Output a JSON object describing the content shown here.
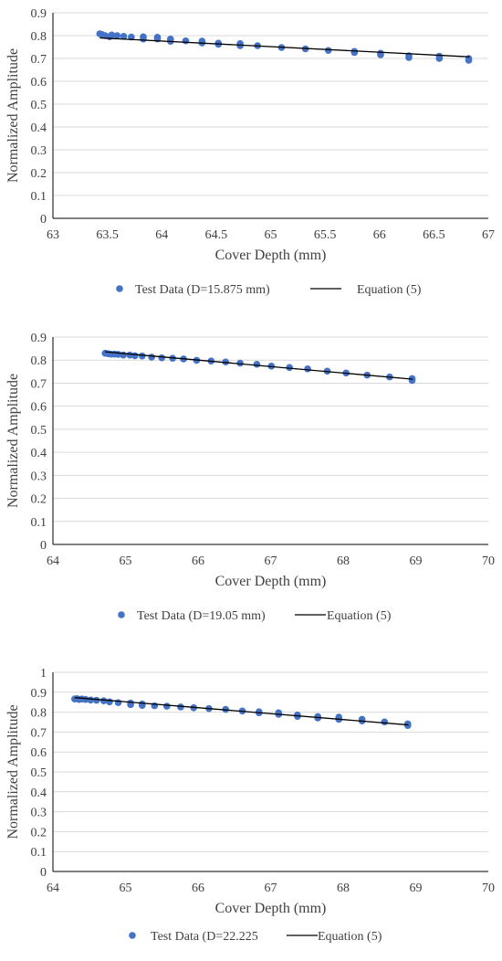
{
  "chart_data": [
    {
      "type": "scatter",
      "title": "",
      "xlabel": "Cover Depth (mm)",
      "ylabel": "Normalized Amplitude",
      "xlim": [
        63,
        67
      ],
      "ylim": [
        0,
        0.9
      ],
      "xticks": [
        "63",
        "63.5",
        "64",
        "64.5",
        "65",
        "65.5",
        "66",
        "66.5",
        "67"
      ],
      "yticks": [
        "0",
        "0.1",
        "0.2",
        "0.3",
        "0.4",
        "0.5",
        "0.6",
        "0.7",
        "0.8",
        "0.9"
      ],
      "grid": "horizontal",
      "legend": "bottom",
      "series": [
        {
          "name": "Test Data (D=15.875 mm)",
          "kind": "points",
          "color": "#4472c4",
          "x": [
            63.43,
            63.45,
            63.48,
            63.52,
            63.54,
            63.59,
            63.65,
            63.72,
            63.83,
            63.83,
            63.96,
            63.96,
            64.08,
            64.08,
            64.22,
            64.37,
            64.37,
            64.52,
            64.52,
            64.72,
            64.72,
            64.88,
            65.1,
            65.32,
            65.53,
            65.77,
            65.77,
            66.01,
            66.01,
            66.27,
            66.27,
            66.55,
            66.55,
            66.82,
            66.82
          ],
          "y": [
            0.808,
            0.805,
            0.8,
            0.795,
            0.803,
            0.8,
            0.797,
            0.794,
            0.795,
            0.785,
            0.793,
            0.785,
            0.785,
            0.775,
            0.777,
            0.776,
            0.768,
            0.767,
            0.762,
            0.765,
            0.756,
            0.756,
            0.748,
            0.742,
            0.735,
            0.731,
            0.726,
            0.723,
            0.716,
            0.712,
            0.704,
            0.71,
            0.7,
            0.7,
            0.692
          ]
        },
        {
          "name": "Equation (5)",
          "kind": "line",
          "color": "#000000",
          "x": [
            63.43,
            66.83
          ],
          "y": [
            0.79,
            0.707
          ]
        }
      ]
    },
    {
      "type": "scatter",
      "title": "",
      "xlabel": "Cover Depth (mm)",
      "ylabel": "Normalized Amplitude",
      "xlim": [
        64,
        70
      ],
      "ylim": [
        0,
        0.9
      ],
      "xticks": [
        "64",
        "65",
        "66",
        "67",
        "68",
        "69",
        "70"
      ],
      "yticks": [
        "0",
        "0.1",
        "0.2",
        "0.3",
        "0.4",
        "0.5",
        "0.6",
        "0.7",
        "0.8",
        "0.9"
      ],
      "grid": "horizontal",
      "legend": "bottom",
      "series": [
        {
          "name": "Test Data (D=19.05 mm)",
          "kind": "points",
          "color": "#4472c4",
          "x": [
            64.72,
            64.76,
            64.8,
            64.85,
            64.9,
            64.97,
            65.06,
            65.13,
            65.23,
            65.36,
            65.5,
            65.65,
            65.8,
            65.98,
            66.18,
            66.38,
            66.58,
            66.81,
            67.01,
            67.26,
            67.51,
            67.78,
            68.04,
            68.33,
            68.64,
            68.95,
            68.95
          ],
          "y": [
            0.83,
            0.828,
            0.826,
            0.826,
            0.825,
            0.822,
            0.822,
            0.819,
            0.818,
            0.813,
            0.81,
            0.808,
            0.805,
            0.799,
            0.796,
            0.792,
            0.787,
            0.782,
            0.774,
            0.768,
            0.762,
            0.752,
            0.744,
            0.735,
            0.727,
            0.72,
            0.712
          ]
        },
        {
          "name": "Equation (5)",
          "kind": "line",
          "color": "#000000",
          "x": [
            64.72,
            68.96
          ],
          "y": [
            0.836,
            0.717
          ]
        }
      ]
    },
    {
      "type": "scatter",
      "title": "",
      "xlabel": "Cover Depth (mm)",
      "ylabel": "Normalized Amplitude",
      "xlim": [
        64,
        70
      ],
      "ylim": [
        0,
        1
      ],
      "xticks": [
        "64",
        "65",
        "66",
        "67",
        "68",
        "69",
        "70"
      ],
      "yticks": [
        "0",
        "0.1",
        "0.2",
        "0.3",
        "0.4",
        "0.5",
        "0.6",
        "0.7",
        "0.8",
        "0.9",
        "1"
      ],
      "grid": "horizontal",
      "legend": "bottom",
      "series": [
        {
          "name": "Test Data (D=22.225",
          "kind": "points",
          "color": "#4472c4",
          "x": [
            64.3,
            64.33,
            64.36,
            64.4,
            64.45,
            64.52,
            64.6,
            64.7,
            64.78,
            64.9,
            65.07,
            65.07,
            65.23,
            65.23,
            65.4,
            65.57,
            65.76,
            65.94,
            66.15,
            66.38,
            66.61,
            66.84,
            66.84,
            67.11,
            67.11,
            67.37,
            67.37,
            67.65,
            67.65,
            67.94,
            67.94,
            68.26,
            68.26,
            68.57,
            68.89,
            68.89
          ],
          "y": [
            0.866,
            0.868,
            0.864,
            0.866,
            0.864,
            0.861,
            0.86,
            0.857,
            0.852,
            0.848,
            0.846,
            0.838,
            0.841,
            0.834,
            0.832,
            0.83,
            0.826,
            0.822,
            0.818,
            0.814,
            0.806,
            0.802,
            0.797,
            0.797,
            0.789,
            0.786,
            0.779,
            0.778,
            0.771,
            0.775,
            0.764,
            0.764,
            0.756,
            0.751,
            0.741,
            0.733
          ]
        },
        {
          "name": "Equation (5)",
          "kind": "line",
          "color": "#000000",
          "x": [
            64.3,
            68.9
          ],
          "y": [
            0.873,
            0.736
          ]
        }
      ]
    }
  ]
}
